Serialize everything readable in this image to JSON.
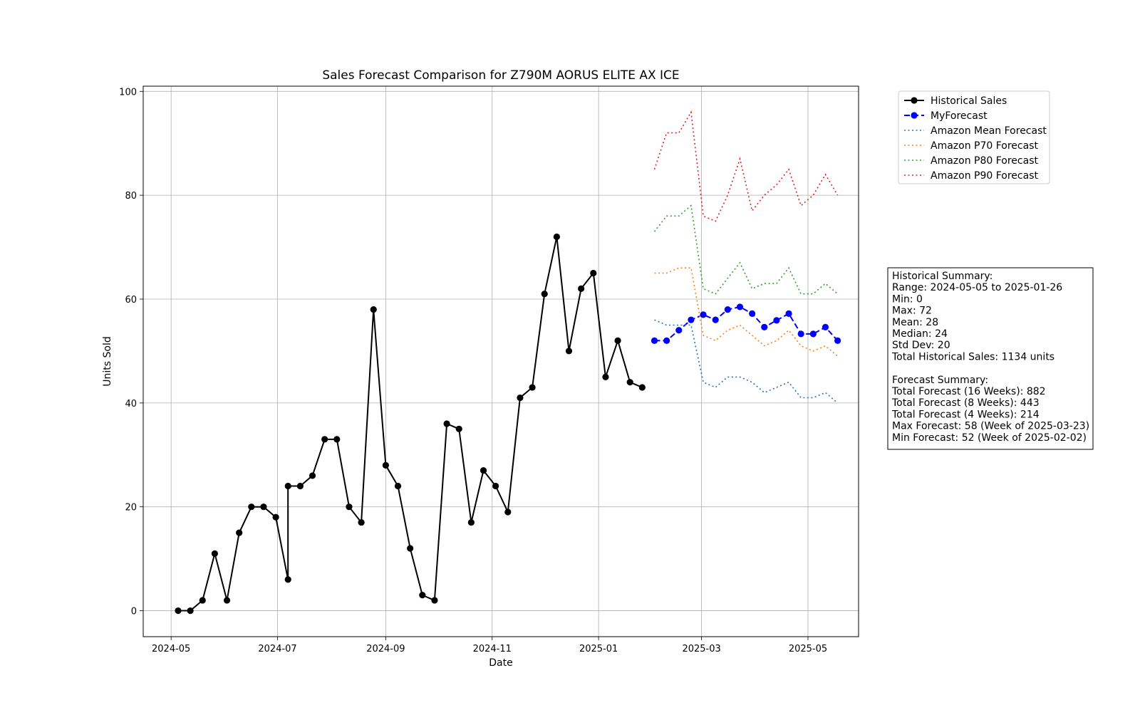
{
  "chart_data": {
    "type": "line",
    "title": "Sales Forecast Comparison for Z790M AORUS ELITE AX ICE",
    "xlabel": "Date",
    "ylabel": "Units Sold",
    "xlim": [
      "2024-04-15",
      "2025-05-30"
    ],
    "ylim": [
      -5,
      101
    ],
    "grid": true,
    "legend_position": "outside-top-right",
    "x_ticks": [
      "2024-05-01",
      "2024-07-01",
      "2024-09-01",
      "2024-11-01",
      "2025-01-01",
      "2025-03-01",
      "2025-05-01"
    ],
    "x_tick_labels": [
      "2024-05",
      "2024-07",
      "2024-09",
      "2024-11",
      "2025-01",
      "2025-03",
      "2025-05"
    ],
    "y_ticks": [
      0,
      20,
      40,
      60,
      80,
      100
    ],
    "y_tick_labels": [
      "0",
      "20",
      "40",
      "60",
      "80",
      "100"
    ],
    "series": [
      {
        "name": "Historical Sales",
        "color": "#000000",
        "line_style": "solid",
        "marker": "circle",
        "points": [
          [
            "2024-05-05",
            0
          ],
          [
            "2024-05-12",
            0
          ],
          [
            "2024-05-19",
            2
          ],
          [
            "2024-05-26",
            11
          ],
          [
            "2024-06-02",
            2
          ],
          [
            "2024-06-09",
            15
          ],
          [
            "2024-06-16",
            20
          ],
          [
            "2024-06-23",
            20
          ],
          [
            "2024-06-30",
            18
          ],
          [
            "2024-07-07",
            6
          ],
          [
            "2024-07-07",
            24
          ],
          [
            "2024-07-14",
            24
          ],
          [
            "2024-07-21",
            26
          ],
          [
            "2024-07-28",
            33
          ],
          [
            "2024-08-04",
            33
          ],
          [
            "2024-08-11",
            20
          ],
          [
            "2024-08-18",
            17
          ],
          [
            "2024-08-25",
            58
          ],
          [
            "2024-09-01",
            28
          ],
          [
            "2024-09-08",
            24
          ],
          [
            "2024-09-15",
            12
          ],
          [
            "2024-09-22",
            3
          ],
          [
            "2024-09-29",
            2
          ],
          [
            "2024-10-06",
            36
          ],
          [
            "2024-10-13",
            35
          ],
          [
            "2024-10-20",
            17
          ],
          [
            "2024-10-27",
            27
          ],
          [
            "2024-11-03",
            24
          ],
          [
            "2024-11-10",
            19
          ],
          [
            "2024-11-17",
            41
          ],
          [
            "2024-11-24",
            43
          ],
          [
            "2024-12-01",
            61
          ],
          [
            "2024-12-08",
            72
          ],
          [
            "2024-12-15",
            50
          ],
          [
            "2024-12-22",
            62
          ],
          [
            "2024-12-29",
            65
          ],
          [
            "2025-01-05",
            45
          ],
          [
            "2025-01-12",
            52
          ],
          [
            "2025-01-19",
            44
          ],
          [
            "2025-01-26",
            43
          ]
        ]
      },
      {
        "name": "MyForecast",
        "color": "#0000ff",
        "line_style": "dashed",
        "marker": "circle",
        "points": [
          [
            "2025-02-02",
            52
          ],
          [
            "2025-02-09",
            52
          ],
          [
            "2025-02-16",
            54
          ],
          [
            "2025-02-23",
            56
          ],
          [
            "2025-03-02",
            57
          ],
          [
            "2025-03-09",
            56
          ],
          [
            "2025-03-16",
            58
          ],
          [
            "2025-03-23",
            58.5
          ],
          [
            "2025-03-30",
            57.2
          ],
          [
            "2025-04-06",
            54.6
          ],
          [
            "2025-04-13",
            55.9
          ],
          [
            "2025-04-20",
            57.2
          ],
          [
            "2025-04-27",
            53.3
          ],
          [
            "2025-05-04",
            53.3
          ],
          [
            "2025-05-11",
            54.6
          ],
          [
            "2025-05-18",
            52
          ]
        ]
      },
      {
        "name": "Amazon Mean Forecast",
        "color": "#1f77b4",
        "line_style": "dotted",
        "marker": "none",
        "points": [
          [
            "2025-02-02",
            56
          ],
          [
            "2025-02-09",
            55
          ],
          [
            "2025-02-16",
            55
          ],
          [
            "2025-02-23",
            55
          ],
          [
            "2025-03-02",
            44
          ],
          [
            "2025-03-09",
            43
          ],
          [
            "2025-03-16",
            45
          ],
          [
            "2025-03-23",
            45
          ],
          [
            "2025-03-30",
            44
          ],
          [
            "2025-04-06",
            42
          ],
          [
            "2025-04-13",
            43
          ],
          [
            "2025-04-20",
            44
          ],
          [
            "2025-04-27",
            41
          ],
          [
            "2025-05-04",
            41
          ],
          [
            "2025-05-11",
            42
          ],
          [
            "2025-05-18",
            40
          ]
        ]
      },
      {
        "name": "Amazon P70 Forecast",
        "color": "#ff7f0e",
        "line_style": "dotted",
        "marker": "none",
        "points": [
          [
            "2025-02-02",
            65
          ],
          [
            "2025-02-09",
            65
          ],
          [
            "2025-02-16",
            66
          ],
          [
            "2025-02-23",
            66
          ],
          [
            "2025-03-02",
            53
          ],
          [
            "2025-03-09",
            52
          ],
          [
            "2025-03-16",
            54
          ],
          [
            "2025-03-23",
            55
          ],
          [
            "2025-03-30",
            53
          ],
          [
            "2025-04-06",
            51
          ],
          [
            "2025-04-13",
            52
          ],
          [
            "2025-04-20",
            54
          ],
          [
            "2025-04-27",
            51
          ],
          [
            "2025-05-04",
            50
          ],
          [
            "2025-05-11",
            51
          ],
          [
            "2025-05-18",
            49
          ]
        ]
      },
      {
        "name": "Amazon P80 Forecast",
        "color": "#2ca02c",
        "line_style": "dotted",
        "marker": "none",
        "points": [
          [
            "2025-02-02",
            73
          ],
          [
            "2025-02-09",
            76
          ],
          [
            "2025-02-16",
            76
          ],
          [
            "2025-02-23",
            78
          ],
          [
            "2025-03-02",
            62
          ],
          [
            "2025-03-09",
            61
          ],
          [
            "2025-03-16",
            64
          ],
          [
            "2025-03-23",
            67
          ],
          [
            "2025-03-30",
            62
          ],
          [
            "2025-04-06",
            63
          ],
          [
            "2025-04-13",
            63
          ],
          [
            "2025-04-20",
            66
          ],
          [
            "2025-04-27",
            61
          ],
          [
            "2025-05-04",
            61
          ],
          [
            "2025-05-11",
            63
          ],
          [
            "2025-05-18",
            61
          ]
        ]
      },
      {
        "name": "Amazon P90 Forecast",
        "color": "#d62728",
        "line_style": "dotted",
        "marker": "none",
        "points": [
          [
            "2025-02-02",
            85
          ],
          [
            "2025-02-09",
            92
          ],
          [
            "2025-02-16",
            92
          ],
          [
            "2025-02-23",
            96
          ],
          [
            "2025-03-02",
            76
          ],
          [
            "2025-03-09",
            75
          ],
          [
            "2025-03-16",
            80
          ],
          [
            "2025-03-23",
            87
          ],
          [
            "2025-03-30",
            77
          ],
          [
            "2025-04-06",
            80
          ],
          [
            "2025-04-13",
            82
          ],
          [
            "2025-04-20",
            85
          ],
          [
            "2025-04-27",
            78
          ],
          [
            "2025-05-04",
            80
          ],
          [
            "2025-05-11",
            84
          ],
          [
            "2025-05-18",
            80
          ]
        ]
      }
    ],
    "annotations": {
      "summary_box": [
        "Historical Summary:",
        "Range: 2024-05-05 to 2025-01-26",
        "Min: 0",
        "Max: 72",
        "Mean: 28",
        "Median: 24",
        "Std Dev: 20",
        "Total Historical Sales: 1134 units",
        "",
        "Forecast Summary:",
        "Total Forecast (16 Weeks): 882",
        "Total Forecast (8 Weeks): 443",
        "Total Forecast (4 Weeks): 214",
        "Max Forecast: 58 (Week of 2025-03-23)",
        "Min Forecast: 52 (Week of 2025-02-02)"
      ]
    }
  }
}
